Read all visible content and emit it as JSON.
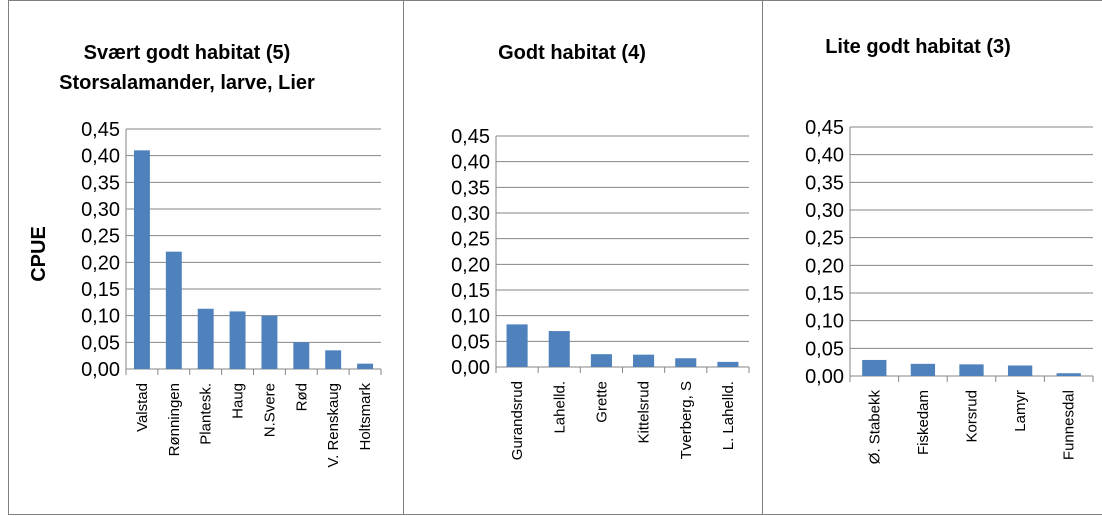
{
  "chart_data": [
    {
      "type": "bar",
      "title": "Svært godt habitat (5)",
      "subtitle": "Storsalamander, larve, Lier",
      "ylabel": "CPUE",
      "ylim": [
        0,
        0.45
      ],
      "yticks": [
        "0,00",
        "0,05",
        "0,10",
        "0,15",
        "0,20",
        "0,25",
        "0,30",
        "0,35",
        "0,40",
        "0,45"
      ],
      "categories": [
        "Valstad",
        "Rønningen",
        "Plantesk.",
        "Haug",
        "N.Svere",
        "Rød",
        "V. Renskaug",
        "Holtsmark"
      ],
      "values": [
        0.41,
        0.22,
        0.113,
        0.108,
        0.1,
        0.05,
        0.035,
        0.01
      ],
      "grid": true,
      "bar_color": "#4f81bd"
    },
    {
      "type": "bar",
      "title": "Godt habitat (4)",
      "ylim": [
        0,
        0.45
      ],
      "yticks": [
        "0,00",
        "0,05",
        "0,10",
        "0,15",
        "0,20",
        "0,25",
        "0,30",
        "0,35",
        "0,40",
        "0,45"
      ],
      "categories": [
        "Gurandsrud",
        "Lahelld.",
        "Grette",
        "Kittelsrud",
        "Tverberg, S",
        "L. Lahelld."
      ],
      "values": [
        0.083,
        0.07,
        0.025,
        0.024,
        0.017,
        0.01
      ],
      "grid": true,
      "bar_color": "#4f81bd"
    },
    {
      "type": "bar",
      "title": "Lite godt habitat (3)",
      "ylim": [
        0,
        0.45
      ],
      "yticks": [
        "0,00",
        "0,05",
        "0,10",
        "0,15",
        "0,20",
        "0,25",
        "0,30",
        "0,35",
        "0,40",
        "0,45"
      ],
      "categories": [
        "Ø. Stabekk",
        "Fiskedam",
        "Korsrud",
        "Lamyr",
        "Funnesdal"
      ],
      "values": [
        0.029,
        0.022,
        0.021,
        0.019,
        0.005
      ],
      "grid": true,
      "bar_color": "#4f81bd"
    }
  ]
}
